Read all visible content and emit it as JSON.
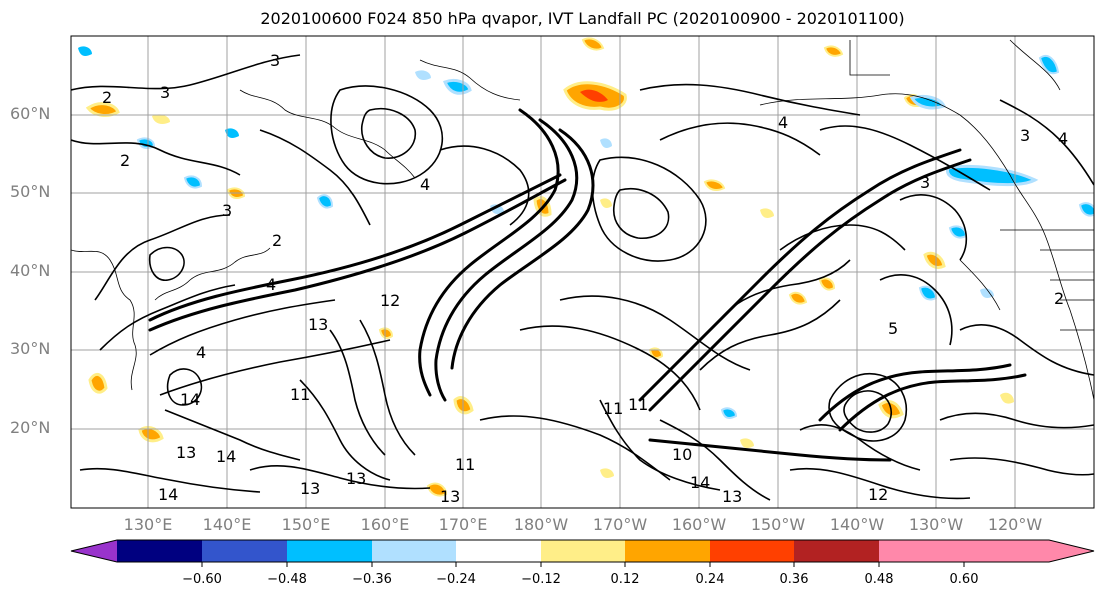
{
  "title": "2020100600 F024 850 hPa qvapor, IVT Landfall PC (2020100900 - 2020101100)",
  "latitude_labels": [
    "60°N",
    "50°N",
    "40°N",
    "30°N",
    "20°N"
  ],
  "longitude_labels": [
    "130°E",
    "140°E",
    "150°E",
    "160°E",
    "170°E",
    "180°W",
    "170°W",
    "160°W",
    "150°W",
    "140°W",
    "130°W",
    "120°W"
  ],
  "colorbar": {
    "tick_labels": [
      "−0.60",
      "−0.48",
      "−0.36",
      "−0.24",
      "−0.12",
      "0.12",
      "0.24",
      "0.36",
      "0.48",
      "0.60"
    ],
    "colors": [
      "#9933cc",
      "#000080",
      "#3355cc",
      "#00bfff",
      "#b0e0ff",
      "#ffffff",
      "#ffee88",
      "#ffa500",
      "#ff4000",
      "#b22222",
      "#ff88aa"
    ]
  },
  "contour_labels": [
    "2",
    "3",
    "2",
    "3",
    "4",
    "3",
    "2",
    "4",
    "4",
    "13",
    "12",
    "14",
    "13",
    "11",
    "14",
    "13",
    "13",
    "14",
    "11",
    "13",
    "11",
    "11",
    "10",
    "14",
    "13",
    "12",
    "5",
    "2",
    "3",
    "4",
    "3",
    "4"
  ],
  "anomaly_colors": {
    "positive_light": "#ffee88",
    "positive_mid": "#ffa500",
    "positive_strong": "#ff4000",
    "negative_light": "#b0e0ff",
    "negative_mid": "#00bfff"
  }
}
